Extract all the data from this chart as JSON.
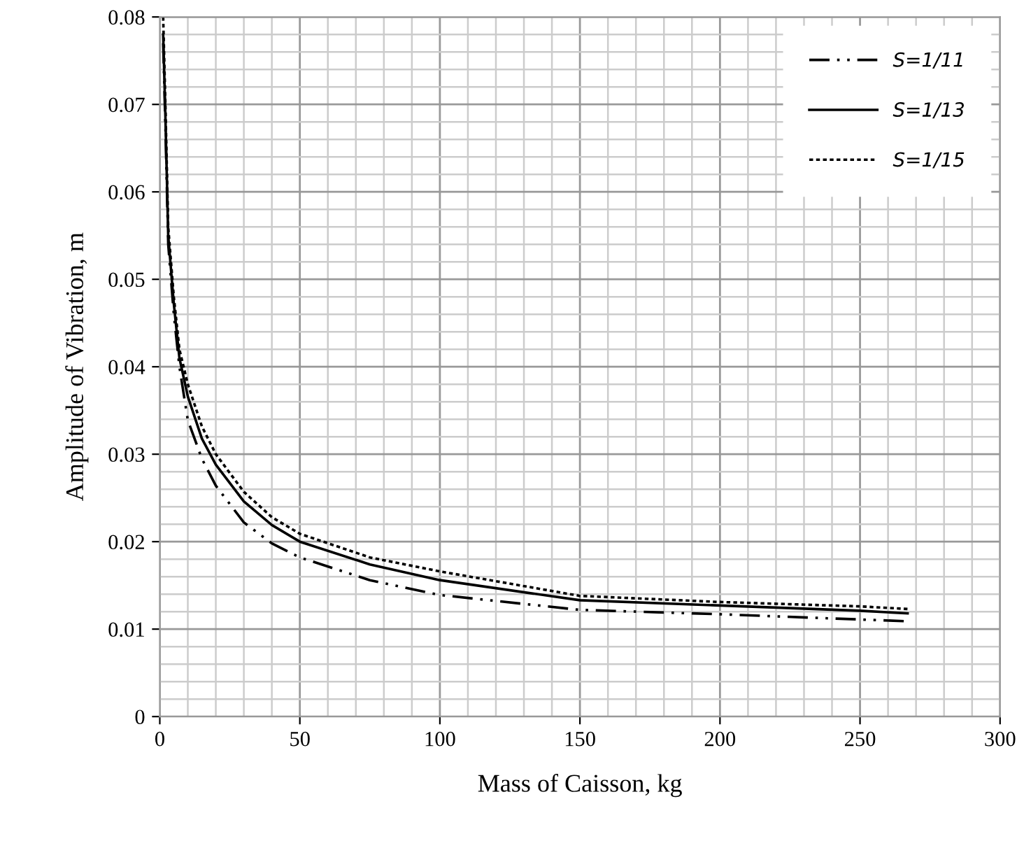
{
  "chart_data": {
    "type": "line",
    "xlabel": "Mass of Caisson, kg",
    "ylabel": "Amplitude of Vibration, m",
    "xlim": [
      0,
      300
    ],
    "ylim": [
      0,
      0.08
    ],
    "xticks": [
      0,
      {
        "value": 10,
        "label": null
      },
      {
        "value": 20,
        "label": null
      },
      {
        "value": 30,
        "label": null
      },
      {
        "value": 40,
        "label": null
      },
      50,
      {
        "value": 60,
        "label": null
      },
      {
        "value": 70,
        "label": null
      },
      {
        "value": 80,
        "label": null
      },
      {
        "value": 90,
        "label": null
      },
      100,
      {
        "value": 110,
        "label": null
      },
      {
        "value": 120,
        "label": null
      },
      {
        "value": 130,
        "label": null
      },
      {
        "value": 140,
        "label": null
      },
      150,
      {
        "value": 160,
        "label": null
      },
      {
        "value": 170,
        "label": null
      },
      {
        "value": 180,
        "label": null
      },
      {
        "value": 190,
        "label": null
      },
      200,
      {
        "value": 210,
        "label": null
      },
      {
        "value": 220,
        "label": null
      },
      {
        "value": 230,
        "label": null
      },
      {
        "value": 240,
        "label": null
      },
      250,
      {
        "value": 260,
        "label": null
      },
      {
        "value": 270,
        "label": null
      },
      {
        "value": 280,
        "label": null
      },
      {
        "value": 290,
        "label": null
      },
      300
    ],
    "yticks": [
      0,
      {
        "value": 0.002,
        "label": null
      },
      {
        "value": 0.004,
        "label": null
      },
      {
        "value": 0.006,
        "label": null
      },
      {
        "value": 0.008,
        "label": null
      },
      0.01,
      {
        "value": 0.012,
        "label": null
      },
      {
        "value": 0.014,
        "label": null
      },
      {
        "value": 0.016,
        "label": null
      },
      {
        "value": 0.018,
        "label": null
      },
      0.02,
      {
        "value": 0.022,
        "label": null
      },
      {
        "value": 0.024,
        "label": null
      },
      {
        "value": 0.026,
        "label": null
      },
      {
        "value": 0.028,
        "label": null
      },
      0.03,
      {
        "value": 0.032,
        "label": null
      },
      {
        "value": 0.034,
        "label": null
      },
      {
        "value": 0.036,
        "label": null
      },
      {
        "value": 0.038,
        "label": null
      },
      0.04,
      {
        "value": 0.042,
        "label": null
      },
      {
        "value": 0.044,
        "label": null
      },
      {
        "value": 0.046,
        "label": null
      },
      {
        "value": 0.048,
        "label": null
      },
      0.05,
      {
        "value": 0.052,
        "label": null
      },
      {
        "value": 0.054,
        "label": null
      },
      {
        "value": 0.056,
        "label": null
      },
      {
        "value": 0.058,
        "label": null
      },
      0.06,
      {
        "value": 0.062,
        "label": null
      },
      {
        "value": 0.064,
        "label": null
      },
      {
        "value": 0.066,
        "label": null
      },
      {
        "value": 0.068,
        "label": null
      },
      0.07,
      {
        "value": 0.072,
        "label": null
      },
      {
        "value": 0.074,
        "label": null
      },
      {
        "value": 0.076,
        "label": null
      },
      {
        "value": 0.078,
        "label": null
      },
      0.08
    ],
    "grid": true,
    "legend": "top right",
    "marker": "none",
    "series": [
      {
        "name": "S=1/11",
        "color": "#000000",
        "line_style": "dashdotdot",
        "x": [
          1.2,
          2,
          3,
          5,
          7,
          10,
          15,
          20,
          30,
          40,
          50,
          75,
          100,
          150,
          200,
          250,
          267
        ],
        "values": [
          0.077,
          0.0675,
          0.054,
          0.046,
          0.04,
          0.0339,
          0.0295,
          0.0264,
          0.0222,
          0.0198,
          0.0182,
          0.0156,
          0.0139,
          0.0122,
          0.0117,
          0.0111,
          0.0109
        ]
      },
      {
        "name": "S=1/13",
        "color": "#000000",
        "line_style": "solid",
        "x": [
          1.2,
          2,
          3,
          5,
          7,
          10,
          15,
          20,
          30,
          40,
          50,
          75,
          100,
          150,
          200,
          250,
          267
        ],
        "values": [
          0.078,
          0.0686,
          0.055,
          0.0472,
          0.041,
          0.0366,
          0.0318,
          0.0288,
          0.0246,
          0.0219,
          0.02,
          0.0174,
          0.0156,
          0.0133,
          0.0127,
          0.0121,
          0.0118
        ]
      },
      {
        "name": "S=1/15",
        "color": "#000000",
        "line_style": "dotted",
        "x": [
          1.2,
          2,
          3,
          5,
          7,
          10,
          15,
          20,
          30,
          40,
          50,
          75,
          100,
          150,
          200,
          250,
          267
        ],
        "values": [
          0.08,
          0.07,
          0.056,
          0.048,
          0.042,
          0.038,
          0.0332,
          0.03,
          0.0257,
          0.0228,
          0.0209,
          0.0182,
          0.0166,
          0.0138,
          0.0131,
          0.0126,
          0.0123
        ]
      }
    ]
  }
}
